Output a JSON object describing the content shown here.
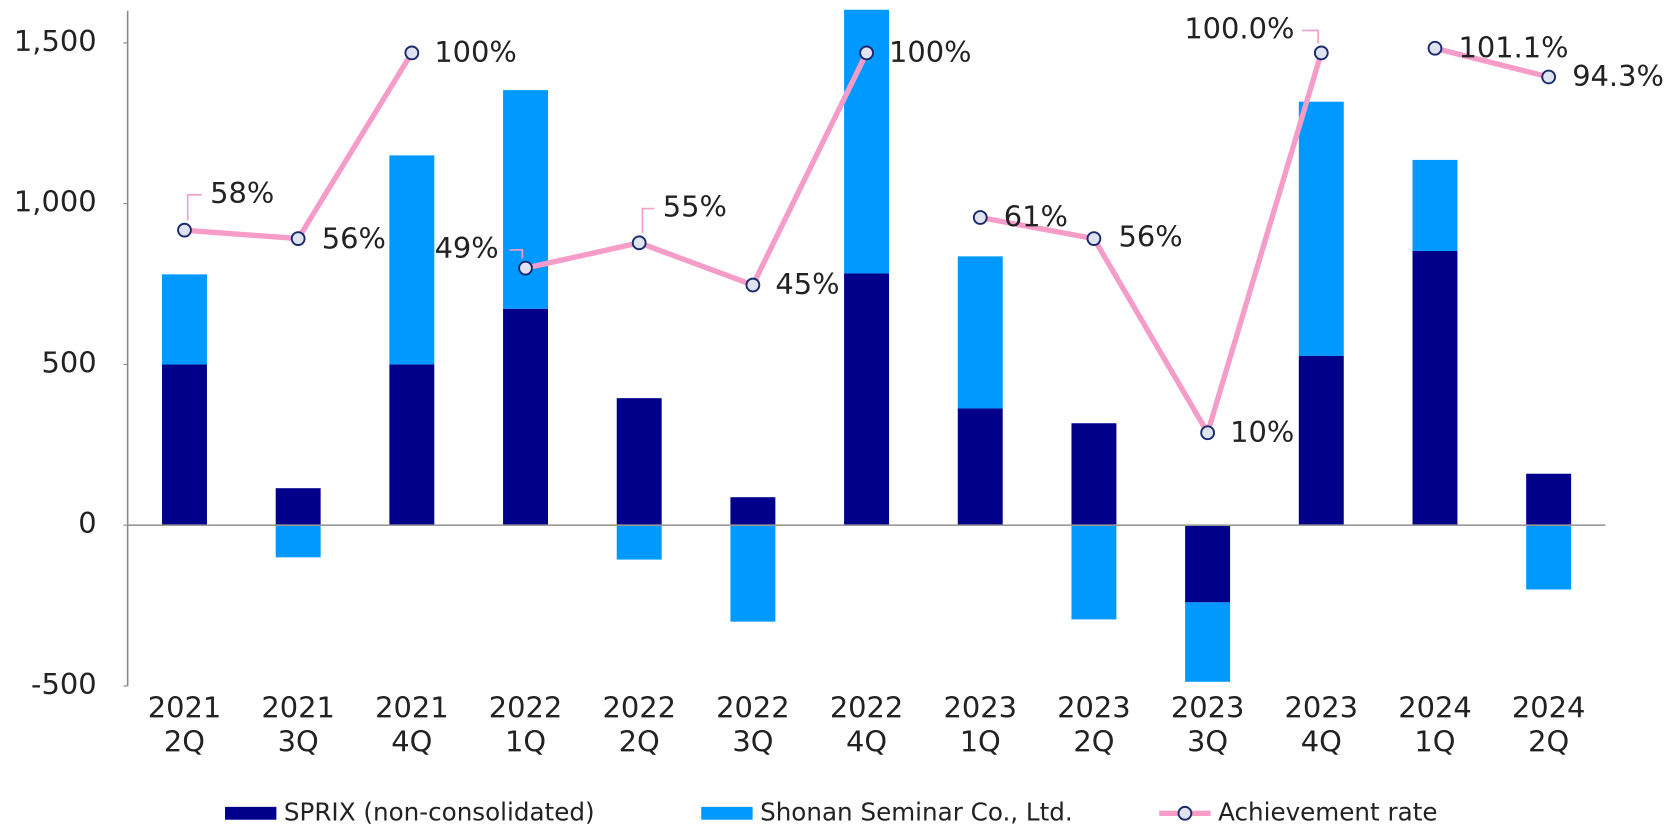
{
  "chart_data": {
    "type": "bar",
    "stacked": true,
    "categories": [
      "2021\n2Q",
      "2021\n3Q",
      "2021\n4Q",
      "2022\n1Q",
      "2022\n2Q",
      "2022\n3Q",
      "2022\n4Q",
      "2023\n1Q",
      "2023\n2Q",
      "2023\n3Q",
      "2023\n4Q",
      "2024\n1Q",
      "2024\n2Q"
    ],
    "series": [
      {
        "name": "SPRIX (non-consolidated)",
        "type": "bar",
        "color": "#00008b",
        "values": [
          500,
          115,
          500,
          673,
          395,
          87,
          783,
          363,
          317,
          -240,
          527,
          853,
          160
        ]
      },
      {
        "name": "Shonan Seminar Co., Ltd.",
        "type": "bar",
        "color": "#0099ff",
        "values": [
          280,
          -100,
          650,
          680,
          -107,
          -300,
          820,
          473,
          -293,
          -247,
          790,
          283,
          -200
        ]
      },
      {
        "name": "Achievement rate",
        "type": "line",
        "axis": "y2",
        "color": "#f59cc8",
        "values": [
          58,
          56,
          100,
          49,
          55,
          45,
          100,
          61,
          56,
          10,
          100.0,
          101.1,
          94.3
        ],
        "value_labels": [
          "58%",
          "56%",
          "100%",
          "49%",
          "55%",
          "45%",
          "100%",
          "61%",
          "56%",
          "10%",
          "100.0%",
          "101.1%",
          "94.3%"
        ]
      }
    ],
    "ylim": [
      -500,
      1600
    ],
    "yticks": [
      {
        "value": -500,
        "label": "-500"
      },
      0,
      500,
      {
        "value": 1000,
        "label": "1,000"
      },
      {
        "value": 1500,
        "label": "1,500"
      }
    ],
    "y2lim": [
      -50,
      110
    ],
    "legend": "bottom"
  }
}
